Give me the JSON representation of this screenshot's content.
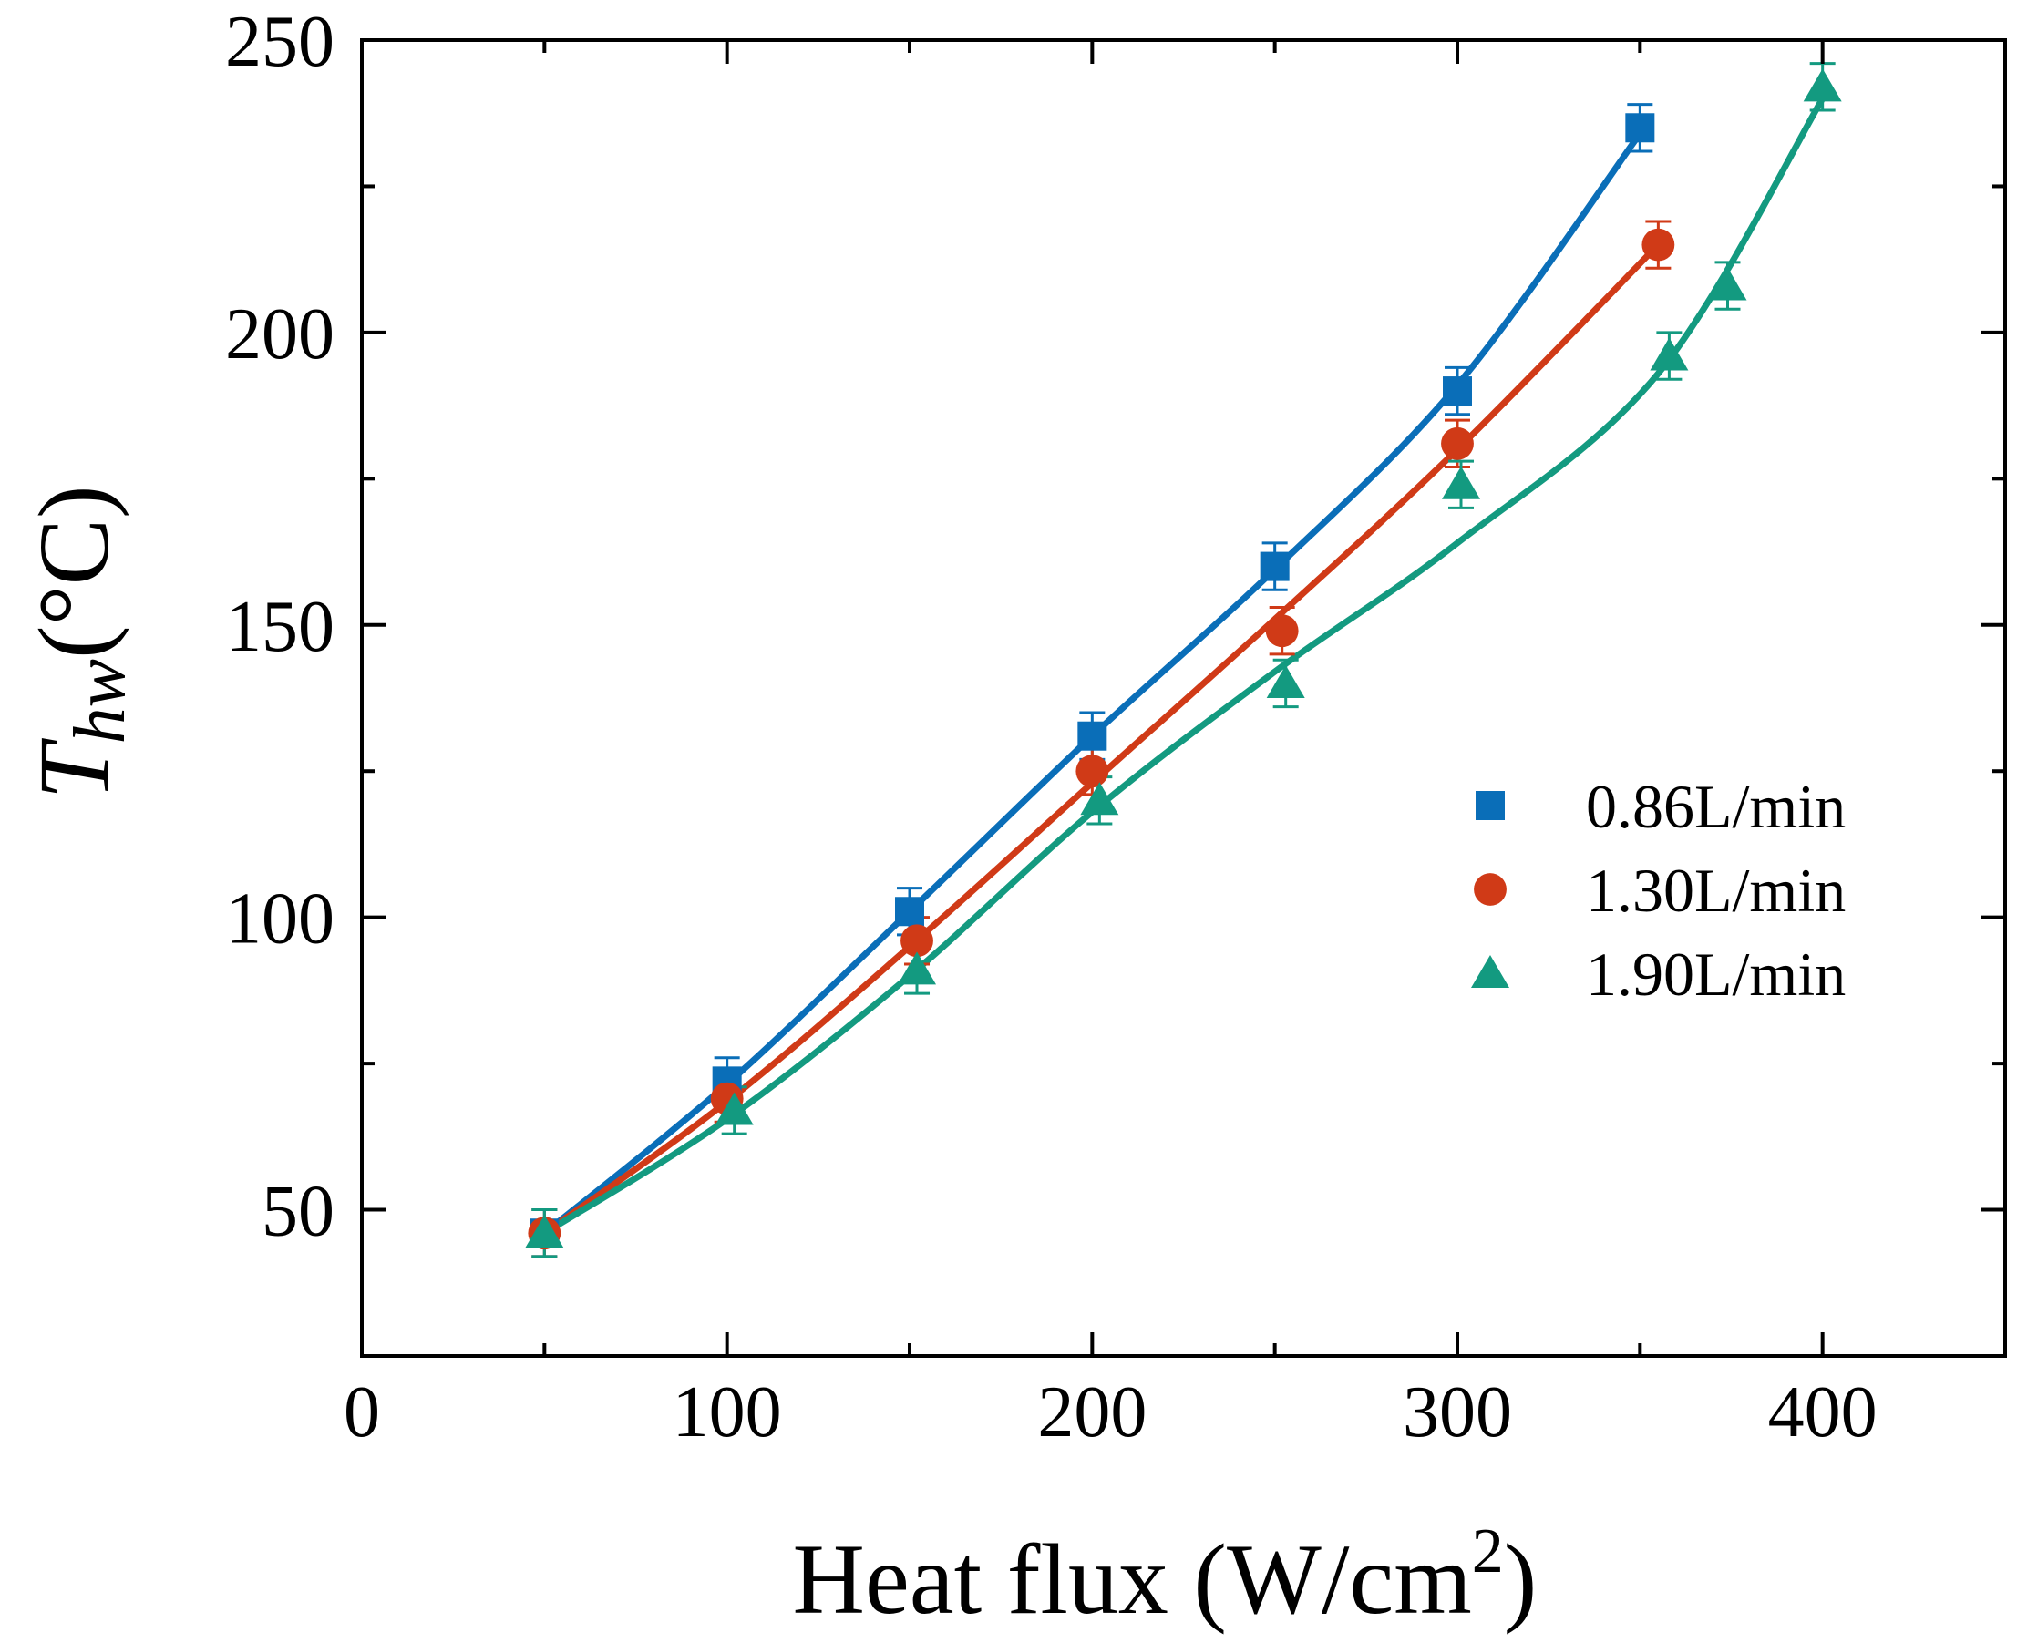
{
  "chart_data": {
    "type": "scatter",
    "title": "",
    "xlabel": {
      "main": "Heat flux (W/cm",
      "sup": "2",
      "close": ")"
    },
    "ylabel": {
      "main": "T",
      "sub": "hw",
      "unit": "(°C)"
    },
    "xlim": [
      0,
      450
    ],
    "ylim": [
      25,
      250
    ],
    "xticks": [
      0,
      100,
      200,
      300,
      400
    ],
    "yticks": [
      50,
      100,
      150,
      200,
      250
    ],
    "x_minor_ticks": [
      50,
      150,
      250,
      350,
      450
    ],
    "y_minor_ticks": [
      25,
      75,
      125,
      175,
      225
    ],
    "legend_position": "center-right",
    "series": [
      {
        "name": "0.86L/min",
        "marker": "square",
        "color": "#0a6eb8",
        "x": [
          50,
          100,
          150,
          200,
          250,
          300,
          350
        ],
        "y": [
          46,
          72,
          101,
          131,
          160,
          190,
          235
        ],
        "err": [
          4,
          4,
          4,
          4,
          4,
          4,
          4
        ],
        "fit_x": [
          50,
          100,
          150,
          200,
          250,
          300,
          350
        ],
        "fit_y": [
          46,
          71.5,
          101,
          131,
          159.5,
          191,
          234
        ]
      },
      {
        "name": "1.30L/min",
        "marker": "circle",
        "color": "#d03a17",
        "x": [
          50,
          100,
          152,
          200,
          252,
          300,
          355
        ],
        "y": [
          46,
          69,
          96,
          125,
          149,
          181,
          215
        ],
        "err": [
          4,
          4,
          4,
          4,
          4,
          4,
          4
        ],
        "fit_x": [
          50,
          100,
          150,
          200,
          250,
          300,
          355
        ],
        "fit_y": [
          46,
          68.5,
          95,
          123,
          151,
          180,
          215
        ]
      },
      {
        "name": "1.90L/min",
        "marker": "triangle",
        "color": "#139a80",
        "x": [
          50,
          102,
          152,
          202,
          253,
          301,
          358,
          374,
          400
        ],
        "y": [
          46,
          67,
          91,
          120,
          140,
          174,
          196,
          208,
          242
        ],
        "err": [
          4,
          4,
          4,
          4,
          4,
          4,
          4,
          4,
          4
        ],
        "fit_x": [
          50,
          100,
          150,
          200,
          250,
          300,
          355,
          400
        ],
        "fit_y": [
          46,
          65.5,
          90,
          118,
          142,
          164,
          193,
          240
        ]
      }
    ]
  }
}
